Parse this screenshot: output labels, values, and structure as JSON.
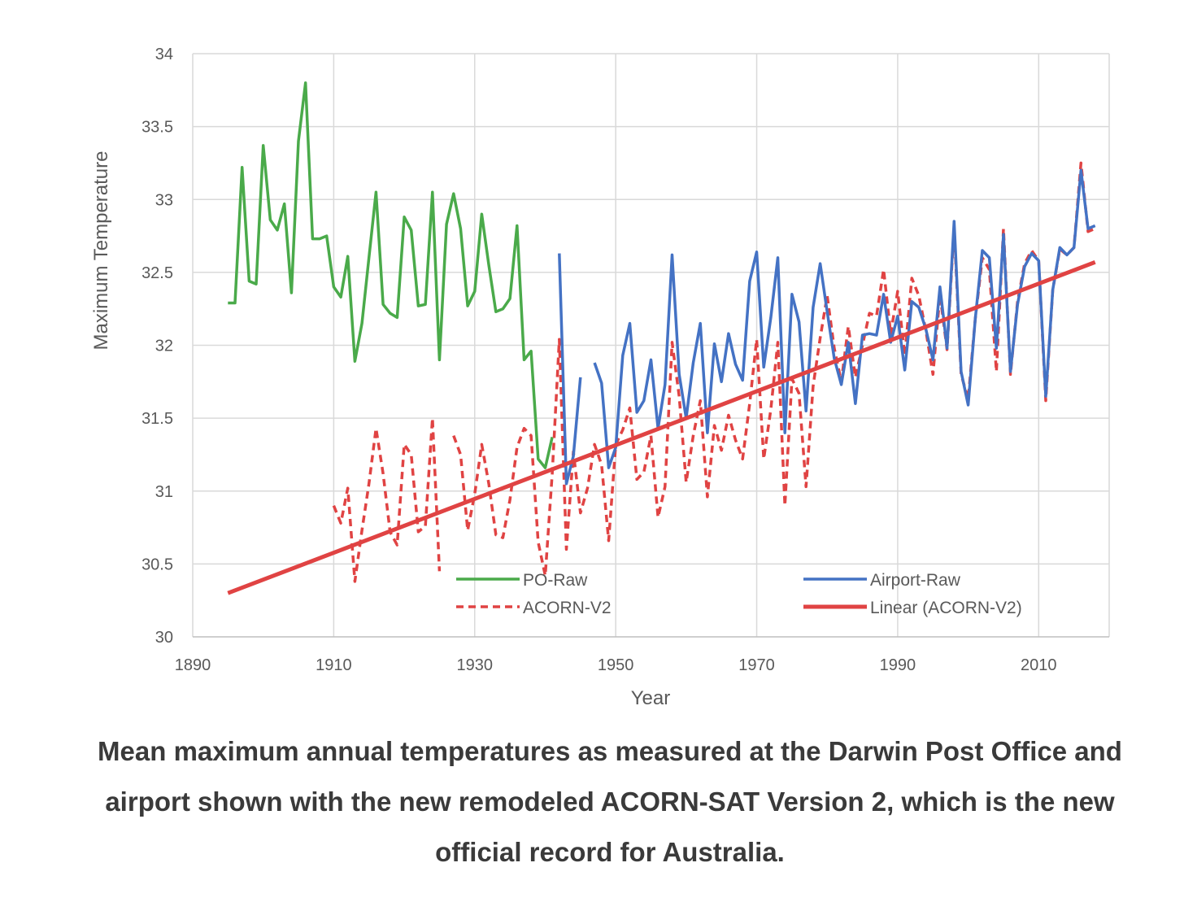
{
  "chart_data": {
    "type": "line",
    "title": "",
    "xlabel": "Year",
    "ylabel": "Maximum Temperature",
    "xlim": [
      1890,
      2020
    ],
    "ylim": [
      30,
      34
    ],
    "x_ticks": [
      1890,
      1910,
      1930,
      1950,
      1970,
      1990,
      2010
    ],
    "y_ticks": [
      30,
      30.5,
      31,
      31.5,
      32,
      32.5,
      33,
      33.5,
      34
    ],
    "y_tick_labels": [
      "30",
      "30.5",
      "31",
      "31.5",
      "32",
      "32.5",
      "33",
      "33.5",
      "34"
    ],
    "grid": true,
    "legend_position": "bottom-inside",
    "series": [
      {
        "name": "PO-Raw",
        "color": "#4aaa4a",
        "style": "solid",
        "x": [
          1895,
          1896,
          1897,
          1898,
          1899,
          1900,
          1901,
          1902,
          1903,
          1904,
          1905,
          1906,
          1907,
          1908,
          1909,
          1910,
          1911,
          1912,
          1913,
          1914,
          1915,
          1916,
          1917,
          1918,
          1919,
          1920,
          1921,
          1922,
          1923,
          1924,
          1925,
          1926,
          1927,
          1928,
          1929,
          1930,
          1931,
          1932,
          1933,
          1934,
          1935,
          1936,
          1937,
          1938,
          1939,
          1940,
          1941
        ],
        "values": [
          32.29,
          32.29,
          33.22,
          32.44,
          32.42,
          33.37,
          32.86,
          32.79,
          32.97,
          32.36,
          33.4,
          33.8,
          32.73,
          32.73,
          32.75,
          32.4,
          32.33,
          32.61,
          31.89,
          32.15,
          32.6,
          33.05,
          32.28,
          32.22,
          32.19,
          32.88,
          32.79,
          32.27,
          32.28,
          33.05,
          31.9,
          32.83,
          33.04,
          32.8,
          32.27,
          32.37,
          32.9,
          32.55,
          32.23,
          32.25,
          32.32,
          32.82,
          31.9,
          31.96,
          31.22,
          31.16,
          31.37
        ]
      },
      {
        "name": "Airport-Raw",
        "color": "#4472c4",
        "style": "solid",
        "x": [
          1942,
          1943,
          1944,
          1945,
          1946,
          1947,
          1948,
          1949,
          1950,
          1951,
          1952,
          1953,
          1954,
          1955,
          1956,
          1957,
          1958,
          1959,
          1960,
          1961,
          1962,
          1963,
          1964,
          1965,
          1966,
          1967,
          1968,
          1969,
          1970,
          1971,
          1972,
          1973,
          1974,
          1975,
          1976,
          1977,
          1978,
          1979,
          1980,
          1981,
          1982,
          1983,
          1984,
          1985,
          1986,
          1987,
          1988,
          1989,
          1990,
          1991,
          1992,
          1993,
          1994,
          1995,
          1996,
          1997,
          1998,
          1999,
          2000,
          2001,
          2002,
          2003,
          2004,
          2005,
          2006,
          2007,
          2008,
          2009,
          2010,
          2011,
          2012,
          2013,
          2014,
          2015,
          2016,
          2017,
          2018
        ],
        "values": [
          32.63,
          31.05,
          31.24,
          31.78,
          null,
          31.88,
          31.74,
          31.16,
          31.3,
          31.93,
          32.15,
          31.54,
          31.62,
          31.9,
          31.43,
          31.73,
          32.62,
          31.8,
          31.5,
          31.88,
          32.15,
          31.4,
          32.01,
          31.75,
          32.08,
          31.87,
          31.76,
          32.44,
          32.64,
          31.85,
          32.19,
          32.6,
          31.4,
          32.35,
          32.16,
          31.55,
          32.26,
          32.56,
          32.23,
          31.91,
          31.73,
          32.02,
          31.6,
          32.07,
          32.08,
          32.07,
          32.35,
          32.02,
          32.2,
          31.83,
          32.3,
          32.26,
          32.11,
          31.9,
          32.4,
          31.98,
          32.85,
          31.82,
          31.59,
          32.18,
          32.65,
          32.6,
          31.98,
          32.76,
          31.82,
          32.28,
          32.54,
          32.63,
          32.58,
          31.65,
          32.38,
          32.67,
          32.62,
          32.67,
          33.2,
          32.8,
          32.82
        ]
      },
      {
        "name": "ACORN-V2",
        "color": "#e04343",
        "style": "dashed",
        "x": [
          1910,
          1911,
          1912,
          1913,
          1914,
          1915,
          1916,
          1917,
          1918,
          1919,
          1920,
          1921,
          1922,
          1923,
          1924,
          1925,
          1926,
          1927,
          1928,
          1929,
          1930,
          1931,
          1932,
          1933,
          1934,
          1935,
          1936,
          1937,
          1938,
          1939,
          1940,
          1941,
          1942,
          1943,
          1944,
          1945,
          1946,
          1947,
          1948,
          1949,
          1950,
          1951,
          1952,
          1953,
          1954,
          1955,
          1956,
          1957,
          1958,
          1959,
          1960,
          1961,
          1962,
          1963,
          1964,
          1965,
          1966,
          1967,
          1968,
          1969,
          1970,
          1971,
          1972,
          1973,
          1974,
          1975,
          1976,
          1977,
          1978,
          1979,
          1980,
          1981,
          1982,
          1983,
          1984,
          1985,
          1986,
          1987,
          1988,
          1989,
          1990,
          1991,
          1992,
          1993,
          1994,
          1995,
          1996,
          1997,
          1998,
          1999,
          2000,
          2001,
          2002,
          2003,
          2004,
          2005,
          2006,
          2007,
          2008,
          2009,
          2010,
          2011,
          2012,
          2013,
          2014,
          2015,
          2016,
          2017,
          2018
        ],
        "values": [
          30.9,
          30.78,
          31.02,
          30.38,
          30.73,
          31.05,
          31.43,
          31.12,
          30.72,
          30.63,
          31.32,
          31.25,
          30.72,
          30.76,
          31.5,
          30.45,
          null,
          31.38,
          31.25,
          30.73,
          30.98,
          31.32,
          31.05,
          30.7,
          30.68,
          30.94,
          31.3,
          31.43,
          31.38,
          30.65,
          30.42,
          31.12,
          32.04,
          30.6,
          31.27,
          30.85,
          31.02,
          31.32,
          31.18,
          30.66,
          31.32,
          31.42,
          31.57,
          31.08,
          31.13,
          31.38,
          30.82,
          31.03,
          32.02,
          31.65,
          31.06,
          31.38,
          31.62,
          30.96,
          31.45,
          31.28,
          31.52,
          31.35,
          31.22,
          31.6,
          32.04,
          31.22,
          31.56,
          32.02,
          30.9,
          31.77,
          31.67,
          31.03,
          31.72,
          32.05,
          32.34,
          31.98,
          31.75,
          32.13,
          31.78,
          32.0,
          32.22,
          32.2,
          32.52,
          32.08,
          32.37,
          31.93,
          32.46,
          32.34,
          32.1,
          31.8,
          32.35,
          31.97,
          32.81,
          31.8,
          31.63,
          32.18,
          32.6,
          32.52,
          31.82,
          32.8,
          31.8,
          32.3,
          32.56,
          32.65,
          32.58,
          31.62,
          32.38,
          32.66,
          32.62,
          32.67,
          33.25,
          32.78,
          32.8
        ]
      },
      {
        "name": "Linear (ACORN-V2)",
        "color": "#e04343",
        "style": "solid",
        "x": [
          1895,
          2018
        ],
        "values": [
          30.3,
          32.57
        ]
      }
    ]
  },
  "caption": "Mean maximum annual temperatures as measured at the Darwin Post Office and airport shown with the new remodeled ACORN-SAT Version 2, which is the new official record for Australia."
}
